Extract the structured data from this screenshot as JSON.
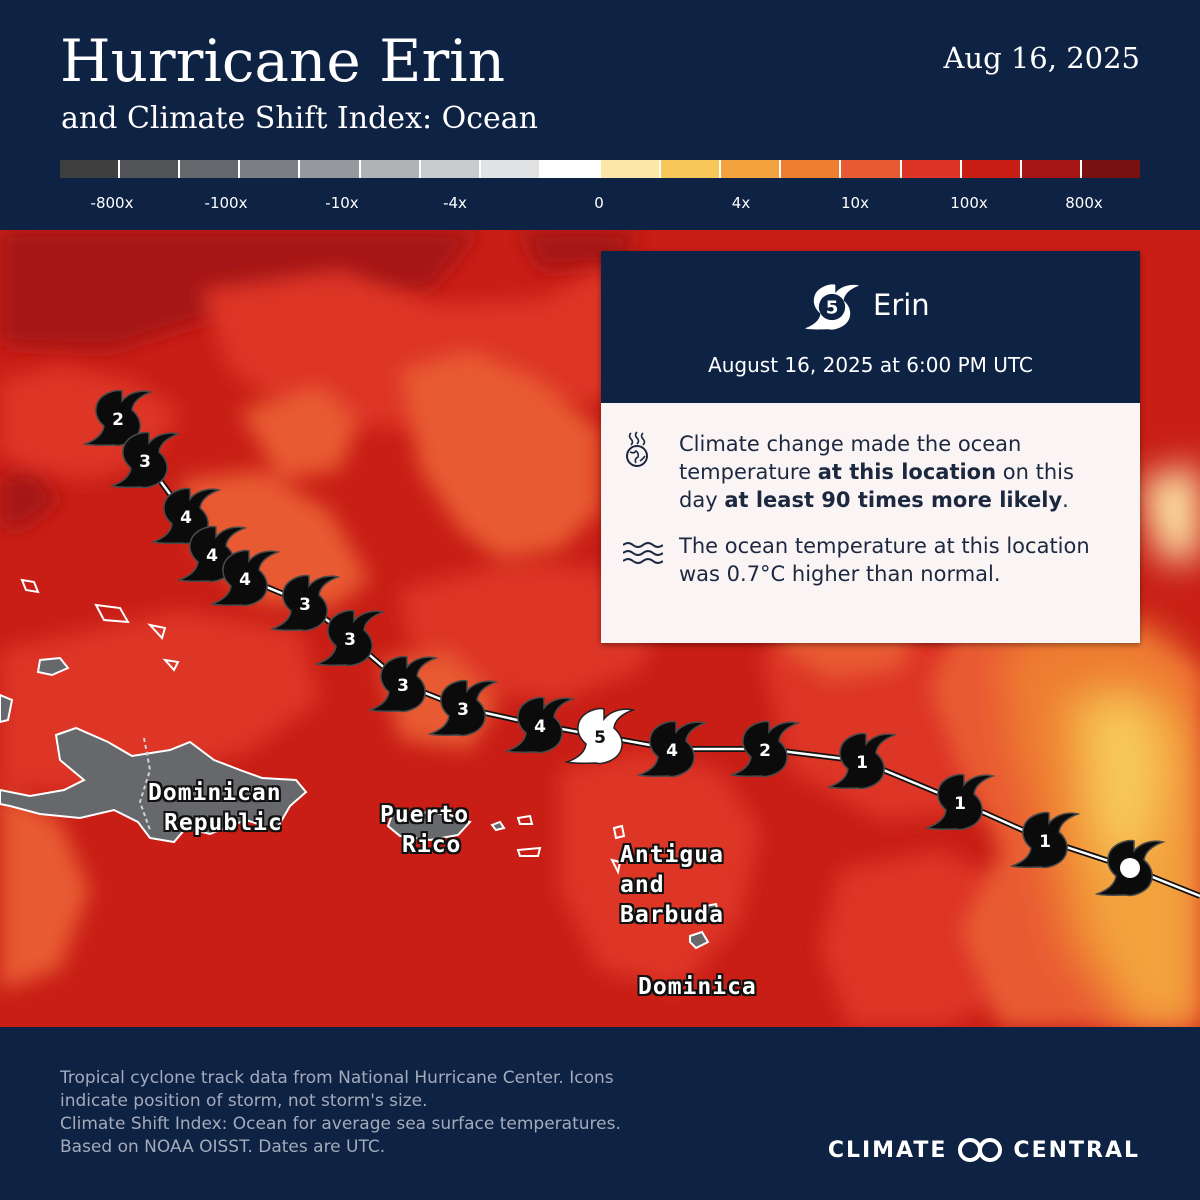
{
  "header": {
    "title": "Hurricane Erin",
    "subtitle": "and Climate Shift Index: Ocean",
    "date": "Aug 16, 2025"
  },
  "legend": {
    "colors": [
      "#3f3f3f",
      "#525458",
      "#65686d",
      "#7c7f84",
      "#95989c",
      "#b0b2b6",
      "#c9cacd",
      "#e1e2e4",
      "#ffffff",
      "#fde7a8",
      "#f7c75a",
      "#f3a23e",
      "#ee7d30",
      "#e85a33",
      "#dd3427",
      "#c81e16",
      "#a51513",
      "#771210"
    ],
    "labels": [
      "-800x",
      "-100x",
      "-10x",
      "-4x",
      "0",
      "4x",
      "10x",
      "100x",
      "800x"
    ]
  },
  "map": {
    "places": {
      "dominican_republic": [
        "Dominican",
        "Republic"
      ],
      "puerto_rico": [
        "Puerto",
        "Rico"
      ],
      "antigua": [
        "Antigua",
        "and",
        "Barbuda"
      ],
      "dominica": "Dominica"
    },
    "track": {
      "categories": [
        "2",
        "3",
        "4",
        "4",
        "4",
        "3",
        "3",
        "3",
        "3",
        "4",
        "5",
        "4",
        "2",
        "1",
        "1",
        "1",
        ""
      ],
      "current_category": "5"
    }
  },
  "info_card": {
    "storm_category": "5",
    "storm_name": "Erin",
    "timestamp": "August 16, 2025 at 6:00 PM UTC",
    "csi_text": {
      "part1": "Climate change made the ocean temperature ",
      "bold1": "at this location",
      "part2": " on this day ",
      "bold2": "at least 90 times more likely",
      "part3": "."
    },
    "anomaly_text": "The ocean temperature at this location was 0.7°C higher than normal."
  },
  "footer": {
    "credit_lines": [
      "Tropical cyclone track data from National Hurricane Center. Icons",
      "indicate position of storm, not storm's size.",
      "Climate Shift Index: Ocean for average sea surface temperatures.",
      "Based on NOAA OISST. Dates are UTC."
    ],
    "brand_left": "CLIMATE",
    "brand_right": "CENTRAL"
  }
}
